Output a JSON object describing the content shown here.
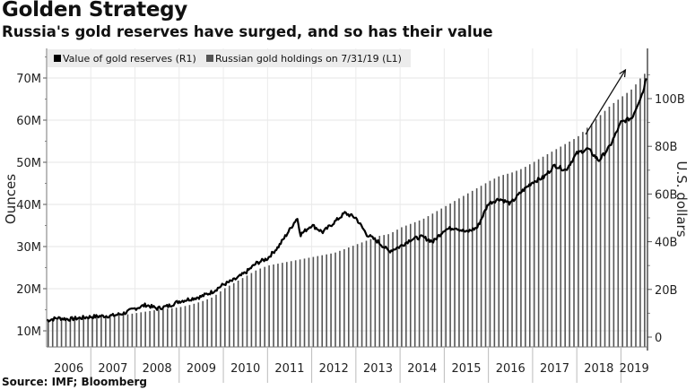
{
  "header": {
    "title": "Golden Strategy",
    "subtitle": "Russia's gold reserves have surged, and so has their value"
  },
  "source": "Source: IMF; Bloomberg",
  "chart_data": {
    "type": "bar+line",
    "title": "Golden Strategy",
    "subtitle": "Russia's gold reserves have surged, and so has their value",
    "legend": {
      "placement": "top-left",
      "entries": [
        {
          "label": "Value of gold reserves (R1)",
          "color": "#000000"
        },
        {
          "label": "Russian gold holdings on 7/31/19 (L1)",
          "color": "#555555"
        }
      ]
    },
    "x": {
      "tick_labels": [
        "2006",
        "2007",
        "2008",
        "2009",
        "2010",
        "2011",
        "2012",
        "2013",
        "2014",
        "2015",
        "2016",
        "2017",
        "2018",
        "2019"
      ],
      "range": [
        2006.0,
        2019.6
      ]
    },
    "left_axis": {
      "label": "Ounces",
      "range": [
        8,
        74
      ],
      "ticks": [
        10,
        20,
        30,
        40,
        50,
        60,
        70
      ],
      "tick_labels": [
        "10M",
        "20M",
        "30M",
        "40M",
        "50M",
        "60M",
        "70M"
      ]
    },
    "right_axis": {
      "label": "U.S. dollars",
      "range": [
        -5,
        115
      ],
      "ticks": [
        0,
        20,
        40,
        60,
        80,
        100
      ],
      "tick_labels": [
        "0",
        "20B",
        "40B",
        "60B",
        "80B",
        "100B"
      ]
    },
    "series": [
      {
        "name": "Russian gold holdings on 7/31/19 (L1)",
        "axis": "left",
        "type": "bar",
        "unit": "million ounces",
        "x": [
          2006.0,
          2006.25,
          2006.5,
          2006.75,
          2007.0,
          2007.25,
          2007.5,
          2007.75,
          2008.0,
          2008.25,
          2008.5,
          2008.75,
          2009.0,
          2009.25,
          2009.5,
          2009.75,
          2010.0,
          2010.25,
          2010.5,
          2010.75,
          2011.0,
          2011.25,
          2011.5,
          2011.75,
          2012.0,
          2012.25,
          2012.5,
          2012.75,
          2013.0,
          2013.25,
          2013.5,
          2013.75,
          2014.0,
          2014.25,
          2014.5,
          2014.75,
          2015.0,
          2015.25,
          2015.5,
          2015.75,
          2016.0,
          2016.25,
          2016.5,
          2016.75,
          2017.0,
          2017.25,
          2017.5,
          2017.75,
          2018.0,
          2018.25,
          2018.5,
          2018.75,
          2019.0,
          2019.25,
          2019.5
        ],
        "values": [
          12.5,
          12.6,
          12.8,
          13.0,
          13.2,
          13.4,
          13.6,
          13.8,
          14.2,
          14.6,
          15.0,
          15.3,
          15.6,
          16.2,
          17.0,
          18.0,
          20.0,
          21.5,
          23.0,
          24.5,
          25.5,
          26.0,
          26.5,
          27.0,
          27.5,
          28.0,
          28.5,
          29.5,
          30.5,
          31.5,
          32.5,
          33.0,
          34.5,
          35.5,
          36.5,
          38.0,
          39.5,
          41.0,
          42.5,
          44.0,
          45.5,
          46.8,
          47.5,
          48.5,
          50.0,
          51.5,
          53.0,
          54.5,
          56.0,
          58.5,
          61.0,
          63.5,
          65.5,
          67.5,
          71.0
        ]
      },
      {
        "name": "Value of gold reserves (R1)",
        "axis": "right",
        "type": "line",
        "unit": "billion USD",
        "x": [
          2006.0,
          2006.25,
          2006.5,
          2006.75,
          2007.0,
          2007.25,
          2007.5,
          2007.75,
          2008.0,
          2008.25,
          2008.5,
          2008.75,
          2009.0,
          2009.25,
          2009.5,
          2009.75,
          2010.0,
          2010.25,
          2010.5,
          2010.75,
          2011.0,
          2011.25,
          2011.5,
          2011.67,
          2011.75,
          2012.0,
          2012.25,
          2012.5,
          2012.75,
          2013.0,
          2013.25,
          2013.5,
          2013.75,
          2014.0,
          2014.25,
          2014.5,
          2014.75,
          2015.0,
          2015.25,
          2015.5,
          2015.75,
          2016.0,
          2016.25,
          2016.5,
          2016.75,
          2017.0,
          2017.25,
          2017.5,
          2017.75,
          2018.0,
          2018.25,
          2018.5,
          2018.75,
          2019.0,
          2019.25,
          2019.5,
          2019.6
        ],
        "values": [
          7,
          8,
          7.5,
          8,
          8.5,
          8.8,
          9,
          10,
          12,
          13.5,
          12,
          13,
          15,
          16,
          17,
          19,
          22,
          24,
          27,
          31,
          33,
          38,
          45,
          50,
          43,
          47,
          44,
          48,
          52,
          50,
          43,
          40,
          36,
          38,
          41,
          42,
          40,
          45,
          46,
          44,
          46,
          56,
          58,
          56,
          61,
          65,
          67,
          72,
          70,
          77,
          79,
          74,
          80,
          90,
          92,
          103,
          111
        ]
      }
    ],
    "annotations": [
      {
        "type": "arrow",
        "from": [
          2018.2,
          85
        ],
        "to": [
          2019.1,
          112
        ]
      }
    ]
  }
}
